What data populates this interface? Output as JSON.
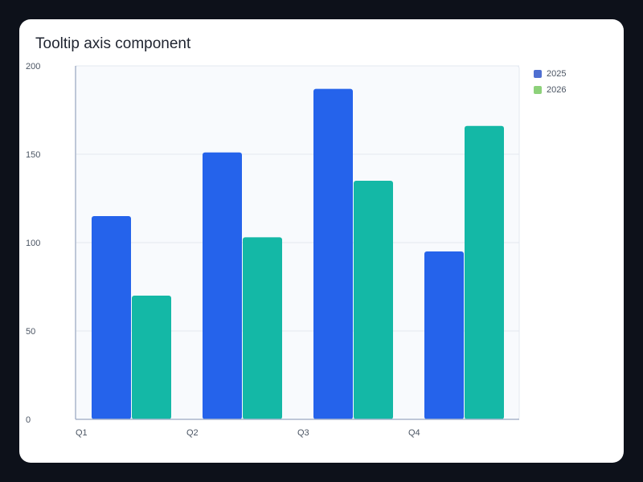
{
  "chart_data": {
    "type": "bar",
    "title": "Tooltip axis component",
    "categories": [
      "Q1",
      "Q2",
      "Q3",
      "Q4"
    ],
    "series": [
      {
        "name": "2025",
        "values": [
          115,
          151,
          187,
          95
        ],
        "color": "#2563eb",
        "legend_color": "#4f6fd1"
      },
      {
        "name": "2026",
        "values": [
          70,
          103,
          135,
          166
        ],
        "color": "#14b8a6",
        "legend_color": "#8dd17a"
      }
    ],
    "yticks": [
      "0",
      "50",
      "100",
      "150",
      "200"
    ],
    "ylim": [
      0,
      200
    ],
    "grid": true,
    "legend_position": "top-right",
    "colors": {
      "page_background": "#0d111a",
      "card_background": "#ffffff",
      "plot_background": "#f8fafd",
      "grid": "#e3e8f0",
      "axis": "#aab6cc"
    }
  }
}
